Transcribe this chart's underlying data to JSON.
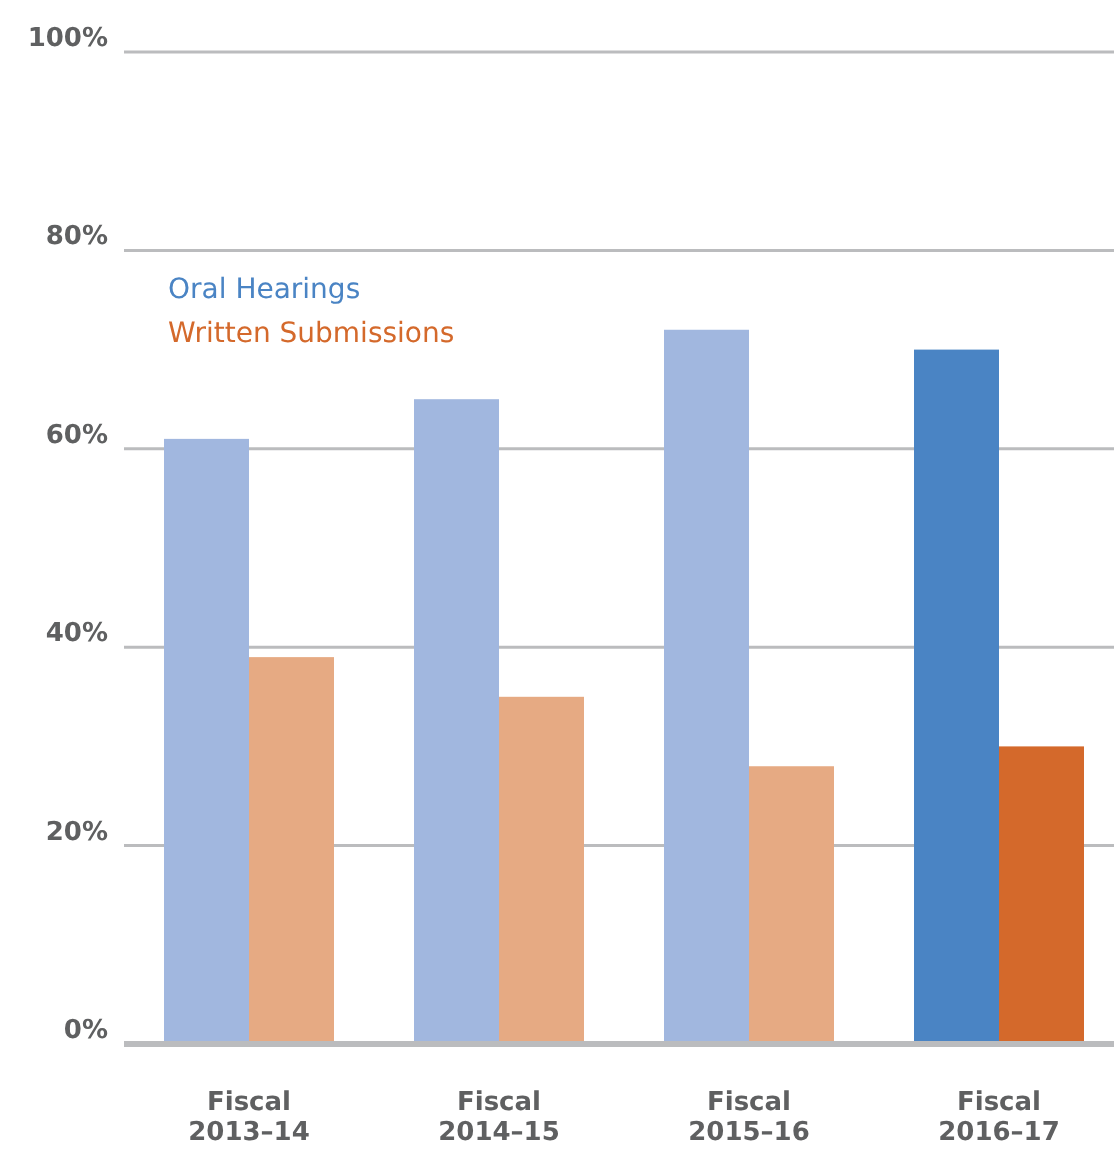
{
  "chart_data": {
    "type": "bar",
    "categories": [
      "Fiscal\n2013–14",
      "Fiscal\n2014–15",
      "Fiscal\n2015–16",
      "Fiscal\n2016–17"
    ],
    "series": [
      {
        "name": "Oral Hearings",
        "color": "#4a84c4",
        "colors": [
          "#a1b7df",
          "#a1b7df",
          "#a1b7df",
          "#4a84c4"
        ],
        "values": [
          61,
          65,
          72,
          70
        ]
      },
      {
        "name": "Written Submissions",
        "color": "#d4692b",
        "colors": [
          "#e6aa83",
          "#e6aa83",
          "#e6aa83",
          "#d4692b"
        ],
        "values": [
          39,
          35,
          28,
          30
        ]
      }
    ],
    "ylim": [
      0,
      100
    ],
    "yticks": [
      {
        "value": 0,
        "label": "0%"
      },
      {
        "value": 20,
        "label": "20%"
      },
      {
        "value": 40,
        "label": "40%"
      },
      {
        "value": 60,
        "label": "60%"
      },
      {
        "value": 80,
        "label": "80%"
      },
      {
        "value": 100,
        "label": "100%"
      }
    ],
    "grid": "y",
    "legend": "top left"
  }
}
